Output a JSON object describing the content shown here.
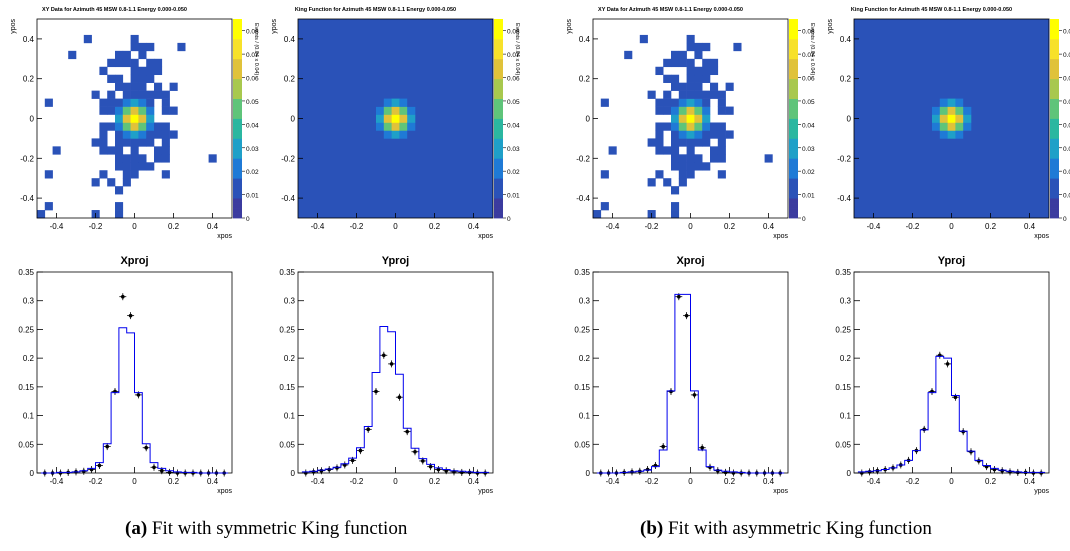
{
  "panels": [
    {
      "caption_label": "(a)",
      "caption_text": " Fit with symmetric King function",
      "data_title": "XY Data for Azimuth 45 MSW 0.8-1.1 Energy 0.000-0.050",
      "model_title": "King Function for Azimuth 45 MSW 0.8-1.1 Energy 0.000-0.050",
      "xproj_title": "Xproj",
      "yproj_title": "Yproj"
    },
    {
      "caption_label": "(b)",
      "caption_text": " Fit with asymmetric King function",
      "data_title": "XY Data for Azimuth 45 MSW 0.8-1.1 Energy 0.000-0.050",
      "model_title": "King Function for Azimuth 45 MSW 0.8-1.1 Energy 0.000-0.050",
      "xproj_title": "Xproj",
      "yproj_title": "Yproj"
    }
  ],
  "colors": {
    "background_bin": "#2a52b8",
    "empty_bin": "#ffffff",
    "model_line": "#0000ee",
    "data_points": "#000000",
    "palette": [
      "#3b3b9f",
      "#2a52b8",
      "#1f7ad6",
      "#1fa0c8",
      "#2bb7a0",
      "#5fc47a",
      "#a8c84e",
      "#e0c23a",
      "#f7e12a",
      "#ffff00"
    ]
  },
  "axis_labels": {
    "map_x": "xpos",
    "map_y": "ypos",
    "colorbar": "Events / (0.04 x 0.04)",
    "proj_x": "xpos",
    "proj_y": "ypos"
  },
  "chart_data": [
    {
      "type": "heatmap",
      "panel": "(a) XY Data",
      "title": "XY Data for Azimuth 45 MSW 0.8-1.1 Energy 0.000-0.050",
      "xlabel": "xpos",
      "ylabel": "ypos",
      "xlim": [
        -0.5,
        0.5
      ],
      "ylim": [
        -0.5,
        0.5
      ],
      "x_ticks": [
        -0.4,
        -0.2,
        0,
        0.2,
        0.4
      ],
      "y_ticks": [
        -0.4,
        -0.2,
        0,
        0.2,
        0.4
      ],
      "colorbar_ticks": [
        "0",
        "0.01",
        "0.02",
        "0.03",
        "0.04",
        "0.05",
        "0.06",
        "0.07",
        "0.08"
      ],
      "zlim": [
        0,
        0.085
      ]
    },
    {
      "type": "heatmap",
      "panel": "(a) King Function",
      "title": "King Function for Azimuth 45 MSW 0.8-1.1 Energy 0.000-0.050",
      "xlabel": "xpos",
      "ylabel": "ypos",
      "xlim": [
        -0.5,
        0.5
      ],
      "ylim": [
        -0.5,
        0.5
      ],
      "x_ticks": [
        -0.4,
        -0.2,
        0,
        0.2,
        0.4
      ],
      "y_ticks": [
        -0.4,
        -0.2,
        0,
        0.2,
        0.4
      ],
      "colorbar_ticks": [
        "0",
        "0.01",
        "0.02",
        "0.03",
        "0.04",
        "0.05",
        "0.06",
        "0.07",
        "0.08"
      ],
      "zlim": [
        0,
        0.085
      ]
    },
    {
      "type": "line",
      "panel": "(a) Xproj",
      "title": "Xproj",
      "xlabel": "xpos",
      "xlim": [
        -0.5,
        0.5
      ],
      "ylim": [
        0,
        0.35
      ],
      "x_ticks": [
        -0.4,
        -0.2,
        0,
        0.2,
        0.4
      ],
      "y_ticks": [
        0,
        0.05,
        0.1,
        0.15,
        0.2,
        0.25,
        0.3,
        0.35
      ],
      "x": [
        -0.46,
        -0.42,
        -0.38,
        -0.34,
        -0.3,
        -0.26,
        -0.22,
        -0.18,
        -0.14,
        -0.1,
        -0.06,
        -0.02,
        0.02,
        0.06,
        0.1,
        0.14,
        0.18,
        0.22,
        0.26,
        0.3,
        0.34,
        0.38,
        0.42,
        0.46
      ],
      "series": [
        {
          "name": "",
          "kind": "points",
          "values": [
            0.0,
            0.0,
            0.0,
            0.001,
            0.002,
            0.003,
            0.006,
            0.013,
            0.046,
            0.142,
            0.307,
            0.274,
            0.136,
            0.044,
            0.01,
            0.004,
            0.001,
            0.0,
            0.0,
            0.0,
            0.0,
            0.0,
            0.0,
            0.0
          ]
        },
        {
          "name": "",
          "kind": "step",
          "values": [
            0.0,
            0.0,
            0.001,
            0.001,
            0.002,
            0.004,
            0.008,
            0.018,
            0.051,
            0.14,
            0.253,
            0.244,
            0.14,
            0.051,
            0.018,
            0.008,
            0.004,
            0.002,
            0.001,
            0.001,
            0.0,
            0.0,
            0.0,
            0.0
          ]
        }
      ]
    },
    {
      "type": "line",
      "panel": "(a) Yproj",
      "title": "Yproj",
      "xlabel": "ypos",
      "xlim": [
        -0.5,
        0.5
      ],
      "ylim": [
        0,
        0.35
      ],
      "x_ticks": [
        -0.4,
        -0.2,
        0,
        0.2,
        0.4
      ],
      "y_ticks": [
        0,
        0.05,
        0.1,
        0.15,
        0.2,
        0.25,
        0.3,
        0.35
      ],
      "x": [
        -0.46,
        -0.42,
        -0.38,
        -0.34,
        -0.3,
        -0.26,
        -0.22,
        -0.18,
        -0.14,
        -0.1,
        -0.06,
        -0.02,
        0.02,
        0.06,
        0.1,
        0.14,
        0.18,
        0.22,
        0.26,
        0.3,
        0.34,
        0.38,
        0.42,
        0.46
      ],
      "series": [
        {
          "name": "",
          "kind": "points",
          "values": [
            0.0,
            0.002,
            0.004,
            0.006,
            0.009,
            0.014,
            0.022,
            0.039,
            0.076,
            0.142,
            0.205,
            0.19,
            0.132,
            0.072,
            0.037,
            0.021,
            0.011,
            0.006,
            0.004,
            0.002,
            0.001,
            0.001,
            0.0,
            0.0
          ]
        },
        {
          "name": "",
          "kind": "step",
          "values": [
            0.002,
            0.003,
            0.005,
            0.007,
            0.01,
            0.016,
            0.026,
            0.044,
            0.081,
            0.175,
            0.255,
            0.246,
            0.172,
            0.078,
            0.043,
            0.025,
            0.015,
            0.009,
            0.006,
            0.004,
            0.003,
            0.002,
            0.001,
            0.001
          ]
        }
      ]
    },
    {
      "type": "heatmap",
      "panel": "(b) XY Data",
      "title": "XY Data for Azimuth 45 MSW 0.8-1.1 Energy 0.000-0.050",
      "xlabel": "xpos",
      "ylabel": "ypos",
      "xlim": [
        -0.5,
        0.5
      ],
      "ylim": [
        -0.5,
        0.5
      ],
      "x_ticks": [
        -0.4,
        -0.2,
        0,
        0.2,
        0.4
      ],
      "y_ticks": [
        -0.4,
        -0.2,
        0,
        0.2,
        0.4
      ],
      "colorbar_ticks": [
        "0",
        "0.01",
        "0.02",
        "0.03",
        "0.04",
        "0.05",
        "0.06",
        "0.07",
        "0.08"
      ],
      "zlim": [
        0,
        0.085
      ]
    },
    {
      "type": "heatmap",
      "panel": "(b) King Function",
      "title": "King Function for Azimuth 45 MSW 0.8-1.1 Energy 0.000-0.050",
      "xlabel": "xpos",
      "ylabel": "ypos",
      "xlim": [
        -0.5,
        0.5
      ],
      "ylim": [
        -0.5,
        0.5
      ],
      "x_ticks": [
        -0.4,
        -0.2,
        0,
        0.2,
        0.4
      ],
      "y_ticks": [
        -0.4,
        -0.2,
        0,
        0.2,
        0.4
      ],
      "colorbar_ticks": [
        "0",
        "0.01",
        "0.02",
        "0.03",
        "0.04",
        "0.05",
        "0.06",
        "0.07",
        "0.08"
      ],
      "zlim": [
        0,
        0.085
      ]
    },
    {
      "type": "line",
      "panel": "(b) Xproj",
      "title": "Xproj",
      "xlabel": "xpos",
      "xlim": [
        -0.5,
        0.5
      ],
      "ylim": [
        0,
        0.35
      ],
      "x_ticks": [
        -0.4,
        -0.2,
        0,
        0.2,
        0.4
      ],
      "y_ticks": [
        0,
        0.05,
        0.1,
        0.15,
        0.2,
        0.25,
        0.3,
        0.35
      ],
      "x": [
        -0.46,
        -0.42,
        -0.38,
        -0.34,
        -0.3,
        -0.26,
        -0.22,
        -0.18,
        -0.14,
        -0.1,
        -0.06,
        -0.02,
        0.02,
        0.06,
        0.1,
        0.14,
        0.18,
        0.22,
        0.26,
        0.3,
        0.34,
        0.38,
        0.42,
        0.46
      ],
      "series": [
        {
          "name": "",
          "kind": "points",
          "values": [
            0.0,
            0.0,
            0.0,
            0.001,
            0.002,
            0.003,
            0.006,
            0.013,
            0.046,
            0.142,
            0.307,
            0.274,
            0.136,
            0.044,
            0.01,
            0.004,
            0.001,
            0.0,
            0.0,
            0.0,
            0.0,
            0.0,
            0.0,
            0.0
          ]
        },
        {
          "name": "",
          "kind": "step",
          "values": [
            0.0,
            0.0,
            0.0,
            0.001,
            0.002,
            0.003,
            0.005,
            0.011,
            0.04,
            0.143,
            0.311,
            0.311,
            0.143,
            0.04,
            0.011,
            0.005,
            0.003,
            0.002,
            0.001,
            0.0,
            0.0,
            0.0,
            0.0,
            0.0
          ]
        }
      ]
    },
    {
      "type": "line",
      "panel": "(b) Yproj",
      "title": "Yproj",
      "xlabel": "ypos",
      "xlim": [
        -0.5,
        0.5
      ],
      "ylim": [
        0,
        0.35
      ],
      "x_ticks": [
        -0.4,
        -0.2,
        0,
        0.2,
        0.4
      ],
      "y_ticks": [
        0,
        0.05,
        0.1,
        0.15,
        0.2,
        0.25,
        0.3,
        0.35
      ],
      "x": [
        -0.46,
        -0.42,
        -0.38,
        -0.34,
        -0.3,
        -0.26,
        -0.22,
        -0.18,
        -0.14,
        -0.1,
        -0.06,
        -0.02,
        0.02,
        0.06,
        0.1,
        0.14,
        0.18,
        0.22,
        0.26,
        0.3,
        0.34,
        0.38,
        0.42,
        0.46
      ],
      "series": [
        {
          "name": "",
          "kind": "points",
          "values": [
            0.0,
            0.002,
            0.004,
            0.006,
            0.009,
            0.014,
            0.022,
            0.039,
            0.076,
            0.142,
            0.205,
            0.19,
            0.132,
            0.072,
            0.037,
            0.021,
            0.011,
            0.006,
            0.004,
            0.002,
            0.001,
            0.001,
            0.0,
            0.0
          ]
        },
        {
          "name": "",
          "kind": "step",
          "values": [
            0.002,
            0.003,
            0.004,
            0.006,
            0.009,
            0.014,
            0.022,
            0.039,
            0.075,
            0.14,
            0.203,
            0.2,
            0.135,
            0.073,
            0.038,
            0.022,
            0.013,
            0.008,
            0.005,
            0.003,
            0.002,
            0.001,
            0.001,
            0.001
          ]
        }
      ]
    }
  ]
}
